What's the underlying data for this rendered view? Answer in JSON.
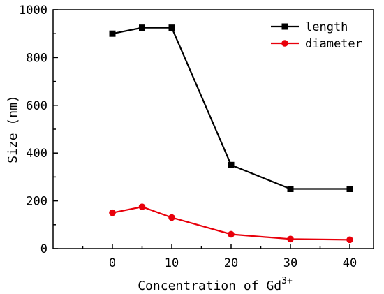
{
  "chart_data": {
    "type": "line",
    "xlabel": "Concentration of Gd",
    "xlabel_superscript": "3+",
    "ylabel": "Size (nm)",
    "xlim": [
      -10,
      44
    ],
    "ylim": [
      0,
      1000
    ],
    "xticks": [
      0,
      10,
      20,
      30,
      40
    ],
    "yticks": [
      0,
      200,
      400,
      600,
      800,
      1000
    ],
    "grid": false,
    "legend_position": "top-right",
    "series": [
      {
        "name": "length",
        "color": "#000000",
        "marker": "square",
        "x": [
          0,
          5,
          10,
          20,
          30,
          40
        ],
        "y": [
          900,
          925,
          925,
          350,
          250,
          250
        ]
      },
      {
        "name": "diameter",
        "color": "#e8000b",
        "marker": "circle",
        "x": [
          0,
          5,
          10,
          20,
          30,
          40
        ],
        "y": [
          150,
          175,
          130,
          60,
          40,
          37
        ]
      }
    ]
  }
}
